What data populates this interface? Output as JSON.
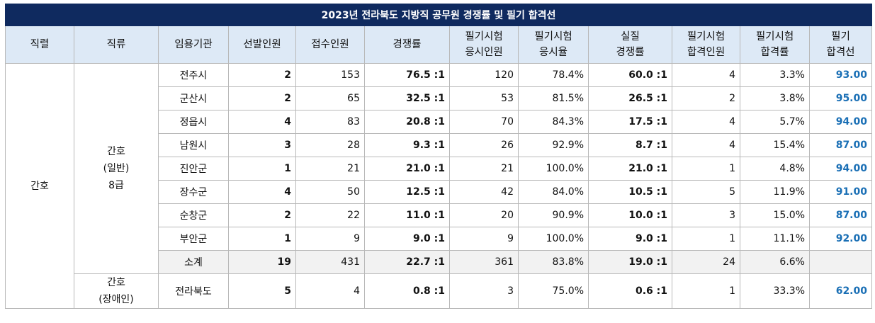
{
  "title": "2023년 전라북도 지방직 공무원 경쟁률 및 필기 합격선",
  "headers": [
    "직렬",
    "직류",
    "임용기관",
    "선발인원",
    "접수인원",
    "경쟁률",
    "필기시험\n응시인원",
    "필기시험\n응시율",
    "실질\n경쟁률",
    "필기시험\n합격인원",
    "필기시험\n합격률",
    "필기\n합격선"
  ],
  "header_lines": [
    [
      "직렬"
    ],
    [
      "직류"
    ],
    [
      "임용기관"
    ],
    [
      "선발인원"
    ],
    [
      "접수인원"
    ],
    [
      "경쟁률"
    ],
    [
      "필기시험",
      "응시인원"
    ],
    [
      "필기시험",
      "응시율"
    ],
    [
      "실질",
      "경쟁률"
    ],
    [
      "필기시험",
      "합격인원"
    ],
    [
      "필기시험",
      "합격률"
    ],
    [
      "필기",
      "합격선"
    ]
  ],
  "series": "간호",
  "group1": {
    "lines": [
      "간호",
      "(일반)",
      "8급"
    ]
  },
  "group2": {
    "lines": [
      "간호",
      "(장애인)"
    ]
  },
  "rows": [
    {
      "agency": "전주시",
      "select": "2",
      "apply": "153",
      "ratio": "76.5 :1",
      "take": "120",
      "take_rate": "78.4%",
      "real": "60.0 :1",
      "pass": "4",
      "pass_rate": "3.3%",
      "cut": "93.00"
    },
    {
      "agency": "군산시",
      "select": "2",
      "apply": "65",
      "ratio": "32.5 :1",
      "take": "53",
      "take_rate": "81.5%",
      "real": "26.5 :1",
      "pass": "2",
      "pass_rate": "3.8%",
      "cut": "95.00"
    },
    {
      "agency": "정읍시",
      "select": "4",
      "apply": "83",
      "ratio": "20.8 :1",
      "take": "70",
      "take_rate": "84.3%",
      "real": "17.5 :1",
      "pass": "4",
      "pass_rate": "5.7%",
      "cut": "94.00"
    },
    {
      "agency": "남원시",
      "select": "3",
      "apply": "28",
      "ratio": "9.3 :1",
      "take": "26",
      "take_rate": "92.9%",
      "real": "8.7 :1",
      "pass": "4",
      "pass_rate": "15.4%",
      "cut": "87.00"
    },
    {
      "agency": "진안군",
      "select": "1",
      "apply": "21",
      "ratio": "21.0 :1",
      "take": "21",
      "take_rate": "100.0%",
      "real": "21.0 :1",
      "pass": "1",
      "pass_rate": "4.8%",
      "cut": "94.00"
    },
    {
      "agency": "장수군",
      "select": "4",
      "apply": "50",
      "ratio": "12.5 :1",
      "take": "42",
      "take_rate": "84.0%",
      "real": "10.5 :1",
      "pass": "5",
      "pass_rate": "11.9%",
      "cut": "91.00"
    },
    {
      "agency": "순창군",
      "select": "2",
      "apply": "22",
      "ratio": "11.0 :1",
      "take": "20",
      "take_rate": "90.9%",
      "real": "10.0 :1",
      "pass": "3",
      "pass_rate": "15.0%",
      "cut": "87.00"
    },
    {
      "agency": "부안군",
      "select": "1",
      "apply": "9",
      "ratio": "9.0 :1",
      "take": "9",
      "take_rate": "100.0%",
      "real": "9.0 :1",
      "pass": "1",
      "pass_rate": "11.1%",
      "cut": "92.00"
    }
  ],
  "subtotal": {
    "agency": "소계",
    "select": "19",
    "apply": "431",
    "ratio": "22.7 :1",
    "take": "361",
    "take_rate": "83.8%",
    "real": "19.0 :1",
    "pass": "24",
    "pass_rate": "6.6%",
    "cut": ""
  },
  "disabled": {
    "agency": "전라북도",
    "select": "5",
    "apply": "4",
    "ratio": "0.8 :1",
    "take": "3",
    "take_rate": "75.0%",
    "real": "0.6 :1",
    "pass": "1",
    "pass_rate": "33.3%",
    "cut": "62.00"
  },
  "colors": {
    "title_bg": "#0f2a5f",
    "header_bg": "#dde9f6",
    "cut_text": "#1a6fb5",
    "subtotal_bg": "#f2f2f2"
  }
}
